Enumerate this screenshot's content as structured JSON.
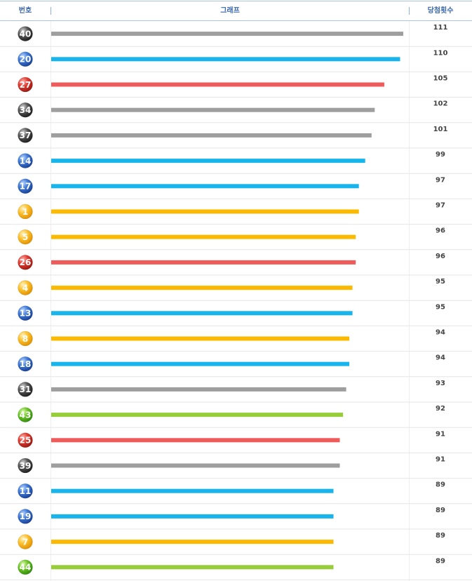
{
  "header": {
    "number_label": "번호",
    "graph_label": "그래프",
    "count_label": "당첨횟수"
  },
  "colors": {
    "yellow": "#fbb900",
    "blue": "#17b5ec",
    "red": "#ef5a5a",
    "gray": "#9e9e9e",
    "green": "#98cd3a",
    "header_text": "#3a67a8",
    "row_line": "#e6e6e6",
    "header_line": "#a9c4e4"
  },
  "chart_data": {
    "type": "bar",
    "orientation": "horizontal",
    "xlim": [
      0,
      111
    ],
    "categories": [
      "40",
      "20",
      "27",
      "34",
      "37",
      "14",
      "17",
      "1",
      "5",
      "26",
      "4",
      "13",
      "8",
      "18",
      "31",
      "43",
      "25",
      "39",
      "11",
      "19",
      "7",
      "44"
    ],
    "values": [
      111,
      110,
      105,
      102,
      101,
      99,
      97,
      97,
      96,
      96,
      95,
      95,
      94,
      94,
      93,
      92,
      91,
      91,
      89,
      89,
      89,
      89
    ],
    "value_labels": [
      "111",
      "110",
      "105",
      "102",
      "101",
      "99",
      "97",
      "97",
      "96",
      "96",
      "95",
      "95",
      "94",
      "94",
      "93",
      "92",
      "91",
      "91",
      "89",
      "89",
      "89",
      "89"
    ],
    "bar_colors": [
      "gray",
      "blue",
      "red",
      "gray",
      "gray",
      "blue",
      "blue",
      "yellow",
      "yellow",
      "red",
      "yellow",
      "blue",
      "yellow",
      "blue",
      "gray",
      "green",
      "red",
      "gray",
      "blue",
      "blue",
      "yellow",
      "green"
    ]
  }
}
